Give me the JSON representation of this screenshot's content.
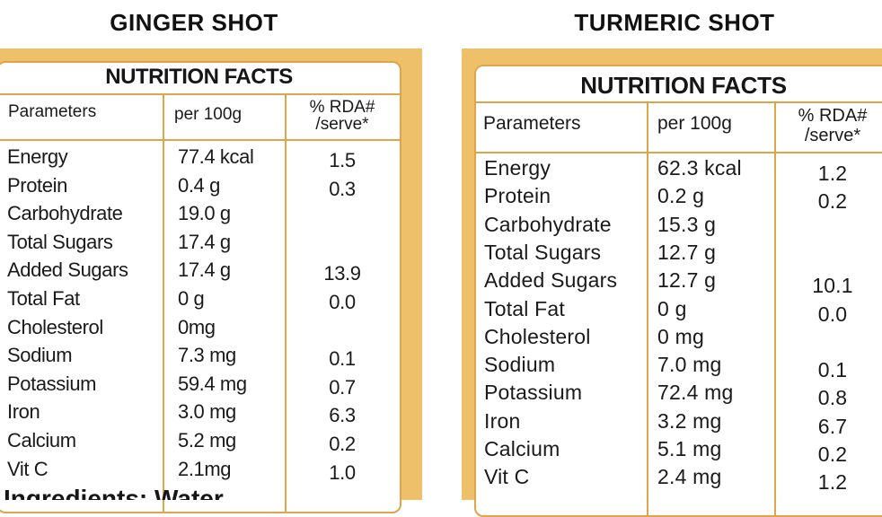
{
  "ginger": {
    "title": "GINGER SHOT",
    "card_heading": "NUTRITION FACTS",
    "headers": {
      "param": "Parameters",
      "per": "per 100g",
      "rda_line1": "% RDA#",
      "rda_line2": "/serve*"
    },
    "rows": [
      {
        "param": "Energy",
        "per": "77.4 kcal",
        "rda": "1.5"
      },
      {
        "param": "Protein",
        "per": "0.4 g",
        "rda": "0.3"
      },
      {
        "param": "Carbohydrate",
        "per": "19.0 g",
        "rda": ""
      },
      {
        "param": "Total Sugars",
        "per": "17.4 g",
        "rda": ""
      },
      {
        "param": "Added Sugars",
        "per": "17.4 g",
        "rda": "13.9"
      },
      {
        "param": "Total Fat",
        "per": "0 g",
        "rda": "0.0"
      },
      {
        "param": "Cholesterol",
        "per": "0mg",
        "rda": ""
      },
      {
        "param": "Sodium",
        "per": "7.3 mg",
        "rda": "0.1"
      },
      {
        "param": "Potassium",
        "per": "59.4 mg",
        "rda": "0.7"
      },
      {
        "param": "Iron",
        "per": "3.0 mg",
        "rda": "6.3"
      },
      {
        "param": "Calcium",
        "per": "5.2 mg",
        "rda": "0.2"
      },
      {
        "param": "Vit C",
        "per": "2.1mg",
        "rda": "1.0"
      }
    ],
    "bottom_text": "Ingredients: Water"
  },
  "turmeric": {
    "title": "TURMERIC SHOT",
    "card_heading": "NUTRITION FACTS",
    "headers": {
      "param": "Parameters",
      "per": "per 100g",
      "rda_line1": "% RDA#",
      "rda_line2": "/serve*"
    },
    "rows": [
      {
        "param": "Energy",
        "per": "62.3 kcal",
        "rda": "1.2"
      },
      {
        "param": "Protein",
        "per": "0.2 g",
        "rda": "0.2"
      },
      {
        "param": "Carbohydrate",
        "per": "15.3 g",
        "rda": ""
      },
      {
        "param": "Total Sugars",
        "per": "12.7 g",
        "rda": ""
      },
      {
        "param": "Added Sugars",
        "per": "12.7 g",
        "rda": "10.1"
      },
      {
        "param": "Total Fat",
        "per": "0 g",
        "rda": "0.0"
      },
      {
        "param": "Cholesterol",
        "per": "0 mg",
        "rda": ""
      },
      {
        "param": "Sodium",
        "per": "7.0 mg",
        "rda": "0.1"
      },
      {
        "param": "Potassium",
        "per": "72.4 mg",
        "rda": "0.8"
      },
      {
        "param": "Iron",
        "per": "3.2 mg",
        "rda": "6.7"
      },
      {
        "param": "Calcium",
        "per": "5.1 mg",
        "rda": "0.2"
      },
      {
        "param": "Vit C",
        "per": "2.4 mg",
        "rda": "1.2"
      }
    ]
  },
  "colors": {
    "panel": "#efc06a",
    "border": "#e0a44a",
    "text": "#1a1a1a"
  }
}
